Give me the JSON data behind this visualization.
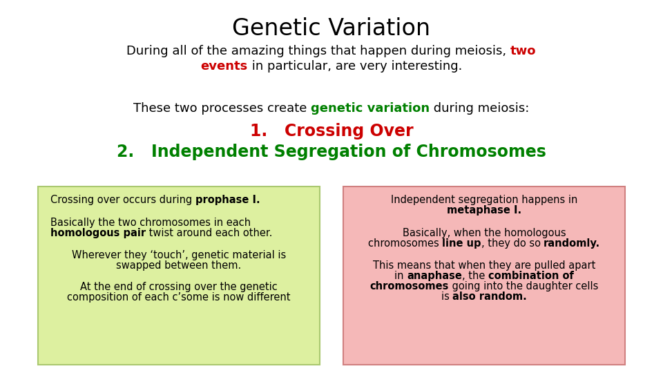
{
  "title": "Genetic Variation",
  "title_fontsize": 24,
  "background_color": "#ffffff",
  "left_box_color": "#ddf0a0",
  "right_box_color": "#f5b8b8",
  "left_box_border": "#aac870",
  "right_box_border": "#d08080",
  "font_family": "DejaVu Sans"
}
